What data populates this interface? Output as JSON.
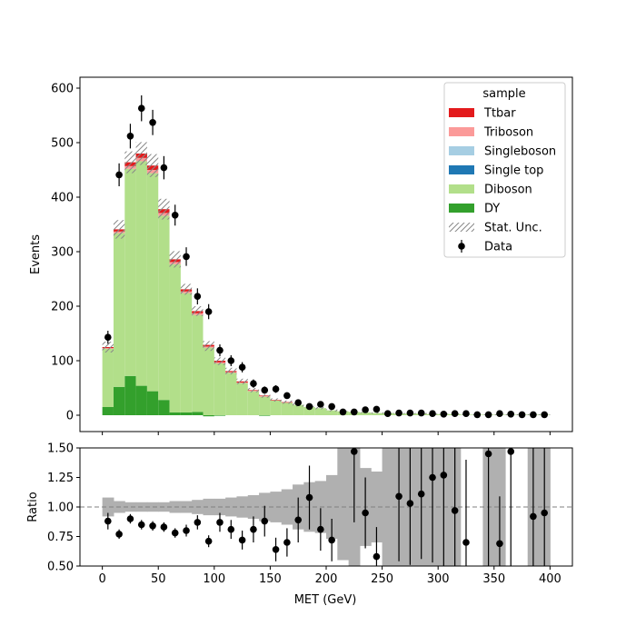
{
  "chart_data": [
    {
      "type": "bar",
      "panel": "main",
      "stacked": true,
      "ylabel": "Events",
      "ylim": [
        -30,
        620
      ],
      "yticks": [
        "0",
        "100",
        "200",
        "300",
        "400",
        "500",
        "600"
      ],
      "bin_edges": [
        0,
        10,
        20,
        30,
        40,
        50,
        60,
        70,
        80,
        90,
        100,
        110,
        120,
        130,
        140,
        150,
        160,
        170,
        180,
        190,
        200,
        210,
        220,
        230,
        240,
        250,
        260,
        270,
        280,
        290,
        300,
        310,
        320,
        330,
        340,
        350,
        360,
        370,
        380,
        390,
        400
      ],
      "legend": {
        "title": "sample",
        "placement": "top-right",
        "entries": [
          {
            "label": "Ttbar",
            "color": "#e31a1c",
            "kind": "patch"
          },
          {
            "label": "Triboson",
            "color": "#fb9a99",
            "kind": "patch"
          },
          {
            "label": "Singleboson",
            "color": "#a6cee3",
            "kind": "patch"
          },
          {
            "label": "Single top",
            "color": "#1f78b4",
            "kind": "patch"
          },
          {
            "label": "Diboson",
            "color": "#b2df8a",
            "kind": "patch"
          },
          {
            "label": "DY",
            "color": "#33a02c",
            "kind": "patch"
          },
          {
            "label": "Stat. Unc.",
            "color": "#888888",
            "kind": "hatch"
          },
          {
            "label": "Data",
            "color": "#000000",
            "kind": "errorbar"
          }
        ]
      },
      "series": [
        {
          "name": "DY",
          "color": "#33a02c",
          "values": [
            15,
            52,
            72,
            54,
            44,
            28,
            5,
            5,
            6,
            -2,
            -1,
            0,
            0,
            0,
            -1,
            0,
            0,
            0,
            0,
            0,
            0,
            0,
            0,
            0,
            0,
            0,
            0,
            0,
            0,
            0,
            0,
            0,
            0,
            0,
            0,
            0,
            0,
            0,
            0,
            0
          ]
        },
        {
          "name": "Diboson",
          "color": "#b2df8a",
          "values": [
            107,
            282,
            380,
            412,
            400,
            338,
            272,
            219,
            178,
            124,
            95,
            78,
            59,
            44,
            34,
            27,
            23,
            19,
            15,
            13,
            9,
            7,
            6,
            5,
            4,
            4,
            3,
            3,
            3,
            2,
            2,
            2,
            1,
            1,
            1,
            1,
            1,
            1,
            1,
            1
          ]
        },
        {
          "name": "Single top",
          "color": "#1f78b4",
          "values": [
            0,
            0,
            0,
            0,
            0,
            0,
            0,
            0,
            0,
            0,
            0,
            0,
            0,
            0,
            0,
            0,
            0,
            0,
            0,
            0,
            0,
            0,
            0,
            0,
            0,
            0,
            0,
            0,
            0,
            0,
            0,
            0,
            0,
            0,
            0,
            0,
            0,
            0,
            0,
            0
          ]
        },
        {
          "name": "Singleboson",
          "color": "#a6cee3",
          "values": [
            0,
            0,
            0,
            0,
            0,
            0,
            0,
            0,
            0,
            0,
            0,
            0,
            0,
            0,
            0,
            0,
            0,
            0,
            0,
            0,
            0,
            0,
            0,
            0,
            0,
            0,
            0,
            0,
            0,
            0,
            0,
            0,
            0,
            0,
            0,
            0,
            0,
            0,
            0,
            0
          ]
        },
        {
          "name": "Triboson",
          "color": "#fb9a99",
          "values": [
            1,
            3,
            5,
            6,
            6,
            5,
            4,
            3,
            3,
            2,
            2,
            1,
            1,
            1,
            1,
            0,
            0,
            0,
            0,
            0,
            0,
            0,
            0,
            0,
            0,
            0,
            0,
            0,
            0,
            0,
            0,
            0,
            0,
            0,
            0,
            0,
            0,
            0,
            0,
            0
          ]
        },
        {
          "name": "Ttbar",
          "color": "#e31a1c",
          "values": [
            2,
            4,
            7,
            8,
            8,
            7,
            5,
            4,
            4,
            3,
            3,
            2,
            2,
            1,
            1,
            1,
            1,
            0,
            0,
            0,
            0,
            0,
            0,
            0,
            0,
            0,
            0,
            0,
            0,
            0,
            0,
            0,
            0,
            0,
            0,
            0,
            0,
            0,
            0,
            0
          ]
        }
      ],
      "stat_unc": [
        10,
        17,
        20,
        21,
        21,
        19,
        15,
        10,
        9,
        9,
        7,
        6,
        5,
        4,
        3,
        3,
        3,
        3,
        2,
        2,
        2,
        1,
        1,
        1,
        1,
        1,
        1,
        1,
        1,
        1,
        1,
        1,
        1,
        1,
        1,
        1,
        1,
        1,
        1,
        1
      ],
      "data": {
        "name": "Data",
        "x": [
          5,
          15,
          25,
          35,
          45,
          55,
          65,
          75,
          85,
          95,
          105,
          115,
          125,
          135,
          145,
          155,
          165,
          175,
          185,
          195,
          205,
          215,
          225,
          235,
          245,
          255,
          265,
          275,
          285,
          295,
          305,
          315,
          325,
          335,
          345,
          355,
          365,
          375,
          385,
          395
        ],
        "y": [
          143,
          441,
          512,
          563,
          537,
          454,
          367,
          291,
          218,
          190,
          119,
          100,
          88,
          58,
          46,
          48,
          36,
          23,
          16,
          20,
          16,
          6,
          6,
          10,
          11,
          3,
          4,
          4,
          4,
          3,
          2,
          3,
          3,
          1,
          1,
          3,
          2,
          1,
          1,
          1
        ]
      }
    },
    {
      "type": "scatter",
      "panel": "ratio",
      "xlabel": "MET (GeV)",
      "ylabel": "Ratio",
      "ylim": [
        0.5,
        1.5
      ],
      "xlim": [
        -20,
        420
      ],
      "xticks": [
        "0",
        "50",
        "100",
        "150",
        "200",
        "250",
        "300",
        "350",
        "400"
      ],
      "yticks": [
        "0.50",
        "0.75",
        "1.00",
        "1.25",
        "1.50"
      ],
      "reference_line": 1.0,
      "unc_band": {
        "color": "#b0b0b0",
        "lo": [
          0.92,
          0.95,
          0.96,
          0.96,
          0.96,
          0.96,
          0.95,
          0.95,
          0.94,
          0.93,
          0.93,
          0.92,
          0.91,
          0.9,
          0.88,
          0.87,
          0.85,
          0.81,
          0.79,
          0.78,
          0.73,
          0.55,
          0.5,
          0.67,
          0.7,
          0.5,
          0.5,
          0.5,
          0.5,
          0.5,
          0.5,
          0.5,
          null,
          null,
          0.5,
          0.5,
          null,
          null,
          0.5,
          0.5
        ],
        "hi": [
          1.08,
          1.05,
          1.04,
          1.04,
          1.04,
          1.04,
          1.05,
          1.05,
          1.06,
          1.07,
          1.07,
          1.08,
          1.09,
          1.1,
          1.12,
          1.13,
          1.15,
          1.19,
          1.21,
          1.22,
          1.27,
          1.5,
          1.5,
          1.33,
          1.3,
          1.5,
          1.5,
          1.5,
          1.5,
          1.5,
          1.5,
          1.5,
          null,
          null,
          1.5,
          1.5,
          null,
          null,
          1.5,
          1.5
        ]
      },
      "points": {
        "x": [
          5,
          15,
          25,
          35,
          45,
          55,
          65,
          75,
          85,
          95,
          105,
          115,
          125,
          135,
          145,
          155,
          165,
          175,
          185,
          195,
          205,
          225,
          235,
          245,
          265,
          275,
          285,
          295,
          305,
          315,
          325,
          345,
          355,
          365,
          385,
          395
        ],
        "y": [
          0.88,
          0.77,
          0.9,
          0.85,
          0.84,
          0.83,
          0.78,
          0.8,
          0.87,
          0.71,
          0.87,
          0.81,
          0.72,
          0.81,
          0.88,
          0.64,
          0.7,
          0.89,
          1.08,
          0.81,
          0.72,
          1.47,
          0.95,
          0.58,
          1.09,
          1.03,
          1.11,
          1.25,
          1.27,
          0.97,
          0.7,
          1.45,
          0.69,
          1.47,
          0.92,
          0.95
        ],
        "err": [
          0.07,
          0.04,
          0.04,
          0.04,
          0.04,
          0.04,
          0.04,
          0.05,
          0.06,
          0.05,
          0.08,
          0.08,
          0.08,
          0.11,
          0.13,
          0.1,
          0.12,
          0.19,
          0.27,
          0.18,
          0.18,
          0.6,
          0.3,
          0.25,
          0.55,
          0.52,
          0.55,
          0.72,
          0.9,
          0.56,
          0.7,
          1.45,
          0.4,
          1.04,
          0.92,
          0.95
        ]
      }
    }
  ]
}
